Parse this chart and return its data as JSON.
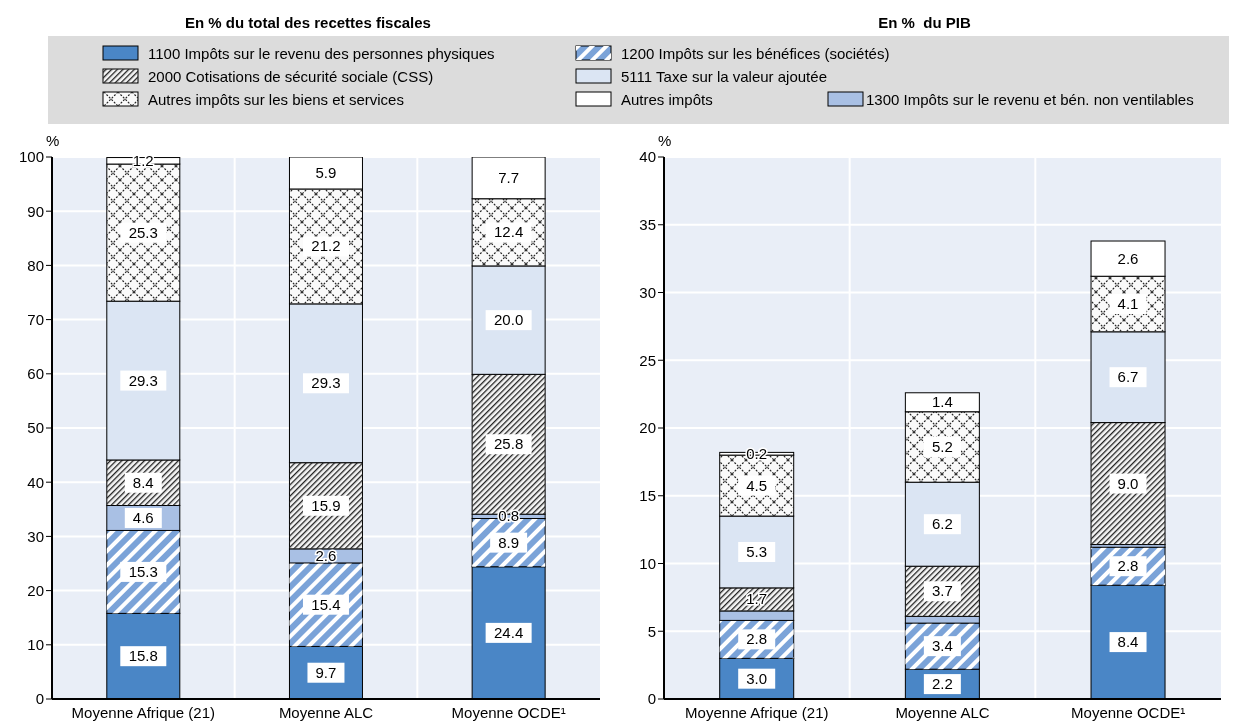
{
  "chart_data": [
    {
      "type": "bar",
      "title": "En % du total des recettes fiscales",
      "ylabel": "%",
      "stacked": true,
      "legend": "top",
      "grid": true,
      "categories": [
        "Moyenne Afrique (21)",
        "Moyenne ALC",
        "Moyenne OCDE¹"
      ],
      "ylim": [
        0,
        100
      ],
      "yticks": [
        0,
        10,
        20,
        30,
        40,
        50,
        60,
        70,
        80,
        90,
        100
      ],
      "series": [
        {
          "name": "1100 Impôts sur le revenu des personnes physiques",
          "color": "#4a86c6",
          "values": [
            15.8,
            9.7,
            24.4
          ],
          "value_labels": [
            "15.8",
            "9.7",
            "24.4"
          ]
        },
        {
          "name": "1200 Impôts sur les bénéfices (sociétés)",
          "color": "#7ba3d8",
          "values": [
            15.3,
            15.4,
            8.9
          ],
          "value_labels": [
            "15.3",
            "15.4",
            "8.9"
          ]
        },
        {
          "name": "1300 Impôts sur le revenu et bén. non ventilables",
          "color": "#a9c0e4",
          "values": [
            4.6,
            2.6,
            0.8
          ],
          "value_labels": [
            "4.6",
            "2.6",
            "0.8"
          ]
        },
        {
          "name": "2000 Cotisations de sécurité sociale (CSS)",
          "color": "#f5f5f5",
          "values": [
            8.4,
            15.9,
            25.8
          ],
          "value_labels": [
            "8.4",
            "15.9",
            "25.8"
          ]
        },
        {
          "name": "5111 Taxe sur la valeur ajoutée",
          "color": "#dbe5f3",
          "values": [
            29.3,
            29.3,
            20.0
          ],
          "value_labels": [
            "29.3",
            "29.3",
            "20.0"
          ]
        },
        {
          "name": "Autres impôts sur les biens et services",
          "color": "#fafafa",
          "values": [
            25.3,
            21.2,
            12.4
          ],
          "value_labels": [
            "25.3",
            "21.2",
            "12.4"
          ]
        },
        {
          "name": "Autres impôts",
          "color": "#ffffff",
          "values": [
            1.2,
            5.9,
            7.7
          ],
          "value_labels": [
            "1.2",
            "5.9",
            "7.7"
          ]
        }
      ]
    },
    {
      "type": "bar",
      "title": "En %  du PIB",
      "ylabel": "%",
      "stacked": true,
      "grid": true,
      "categories": [
        "Moyenne Afrique (21)",
        "Moyenne ALC",
        "Moyenne OCDE¹"
      ],
      "ylim": [
        0,
        40
      ],
      "yticks": [
        0,
        5,
        10,
        15,
        20,
        25,
        30,
        35,
        40
      ],
      "series": [
        {
          "name": "1100 Impôts sur le revenu des personnes physiques",
          "color": "#4a86c6",
          "values": [
            3.0,
            2.2,
            8.4
          ],
          "value_labels": [
            "3.0",
            "2.2",
            "8.4"
          ]
        },
        {
          "name": "1200 Impôts sur les bénéfices (sociétés)",
          "color": "#7ba3d8",
          "values": [
            2.8,
            3.4,
            2.8
          ],
          "value_labels": [
            "2.8",
            "3.4",
            "2.8"
          ]
        },
        {
          "name": "1300 Impôts sur le revenu et bén. non ventilables",
          "color": "#a9c0e4",
          "values": [
            0.7,
            0.5,
            0.2
          ],
          "value_labels": [
            null,
            null,
            null
          ]
        },
        {
          "name": "2000 Cotisations de sécurité sociale (CSS)",
          "color": "#f5f5f5",
          "values": [
            1.7,
            3.7,
            9.0
          ],
          "value_labels": [
            "1.7",
            "3.7",
            "9.0"
          ]
        },
        {
          "name": "5111 Taxe sur la valeur ajoutée",
          "color": "#dbe5f3",
          "values": [
            5.3,
            6.2,
            6.7
          ],
          "value_labels": [
            "5.3",
            "6.2",
            "6.7"
          ]
        },
        {
          "name": "Autres impôts sur les biens et services",
          "color": "#fafafa",
          "values": [
            4.5,
            5.2,
            4.1
          ],
          "value_labels": [
            "4.5",
            "5.2",
            "4.1"
          ]
        },
        {
          "name": "Autres impôts",
          "color": "#ffffff",
          "values": [
            0.2,
            1.4,
            2.6
          ],
          "value_labels": [
            "0.2",
            "1.4",
            "2.6"
          ]
        }
      ]
    }
  ]
}
